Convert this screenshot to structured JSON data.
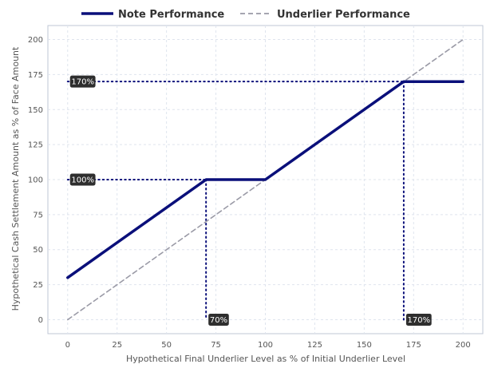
{
  "chart_data": {
    "type": "line",
    "xlabel": "Hypothetical Final Underlier Level as % of Initial Underlier Level",
    "ylabel": "Hypothetical Cash Settlement Amount as % of Face Amount",
    "xlim": [
      -10,
      210
    ],
    "ylim": [
      -10,
      210
    ],
    "xticks": [
      0,
      25,
      50,
      75,
      100,
      125,
      150,
      175,
      200
    ],
    "yticks": [
      0,
      25,
      50,
      75,
      100,
      125,
      150,
      175,
      200
    ],
    "grid": true,
    "legend_position": "top-center",
    "series": [
      {
        "name": "Note Performance",
        "style": "solid",
        "color": "#0a0f7a",
        "x": [
          0,
          70,
          100,
          170,
          200
        ],
        "y": [
          30,
          100,
          100,
          170,
          170
        ]
      },
      {
        "name": "Underlier Performance",
        "style": "dashed",
        "color": "#9a9aa6",
        "x": [
          0,
          200
        ],
        "y": [
          0,
          200
        ]
      }
    ],
    "reference_lines": [
      {
        "orientation": "horizontal",
        "value": 170,
        "from": 0,
        "to": 170,
        "label": "170%"
      },
      {
        "orientation": "horizontal",
        "value": 100,
        "from": 0,
        "to": 70,
        "label": "100%"
      },
      {
        "orientation": "vertical",
        "value": 70,
        "from": 100,
        "to": 0,
        "label": "70%"
      },
      {
        "orientation": "vertical",
        "value": 170,
        "from": 170,
        "to": 0,
        "label": "170%"
      }
    ]
  }
}
